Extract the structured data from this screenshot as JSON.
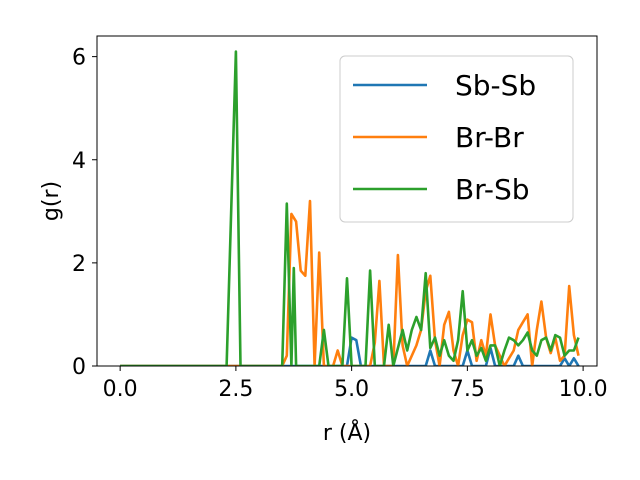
{
  "chart_data": {
    "type": "line",
    "xlabel": "r (Å)",
    "ylabel": "g(r)",
    "xlim": [
      -0.5,
      10.3
    ],
    "ylim": [
      0,
      6.4
    ],
    "xticks": [
      0.0,
      2.5,
      5.0,
      7.5,
      10.0
    ],
    "xtick_labels": [
      "0.0",
      "2.5",
      "5.0",
      "7.5",
      "10.0"
    ],
    "yticks": [
      0,
      2,
      4,
      6
    ],
    "ytick_labels": [
      "0",
      "2",
      "4",
      "6"
    ],
    "legend_position": "top-right",
    "grid": false,
    "series": [
      {
        "name": "Sb-Sb",
        "color": "#1f77b4",
        "points": [
          [
            0.0,
            0
          ],
          [
            4.9,
            0
          ],
          [
            5.0,
            0.55
          ],
          [
            5.1,
            0.5
          ],
          [
            5.2,
            0
          ],
          [
            6.6,
            0
          ],
          [
            6.7,
            0.3
          ],
          [
            6.8,
            0
          ],
          [
            7.4,
            0
          ],
          [
            7.5,
            0.3
          ],
          [
            7.6,
            0
          ],
          [
            7.9,
            0
          ],
          [
            8.0,
            0.35
          ],
          [
            8.1,
            0
          ],
          [
            8.5,
            0
          ],
          [
            8.6,
            0.2
          ],
          [
            8.7,
            0
          ],
          [
            9.5,
            0
          ],
          [
            9.6,
            0.15
          ],
          [
            9.7,
            0
          ],
          [
            9.8,
            0.15
          ],
          [
            9.9,
            0
          ]
        ]
      },
      {
        "name": "Br-Br",
        "color": "#ff7f0e",
        "points": [
          [
            0.0,
            0
          ],
          [
            3.5,
            0
          ],
          [
            3.6,
            0.2
          ],
          [
            3.7,
            2.95
          ],
          [
            3.8,
            2.8
          ],
          [
            3.9,
            1.85
          ],
          [
            4.0,
            1.75
          ],
          [
            4.1,
            3.2
          ],
          [
            4.2,
            0
          ],
          [
            4.3,
            2.2
          ],
          [
            4.4,
            0
          ],
          [
            4.6,
            0
          ],
          [
            4.7,
            0.3
          ],
          [
            4.8,
            0
          ],
          [
            5.4,
            0
          ],
          [
            5.5,
            0.45
          ],
          [
            5.6,
            1.65
          ],
          [
            5.7,
            0
          ],
          [
            5.9,
            0
          ],
          [
            6.0,
            2.15
          ],
          [
            6.1,
            0.4
          ],
          [
            6.2,
            0
          ],
          [
            6.4,
            0.4
          ],
          [
            6.5,
            0.7
          ],
          [
            6.6,
            1.45
          ],
          [
            6.7,
            1.75
          ],
          [
            6.8,
            0.5
          ],
          [
            6.9,
            0
          ],
          [
            7.0,
            0.8
          ],
          [
            7.1,
            1.05
          ],
          [
            7.2,
            0.3
          ],
          [
            7.3,
            0
          ],
          [
            7.4,
            0.6
          ],
          [
            7.5,
            0.9
          ],
          [
            7.6,
            0.85
          ],
          [
            7.7,
            0.1
          ],
          [
            7.8,
            0.5
          ],
          [
            7.9,
            0.2
          ],
          [
            8.0,
            1.0
          ],
          [
            8.1,
            0.4
          ],
          [
            8.2,
            0.2
          ],
          [
            8.3,
            0
          ],
          [
            8.5,
            0.3
          ],
          [
            8.6,
            0.7
          ],
          [
            8.7,
            0.85
          ],
          [
            8.8,
            1.0
          ],
          [
            8.9,
            0
          ],
          [
            9.0,
            0.7
          ],
          [
            9.1,
            1.25
          ],
          [
            9.2,
            0.55
          ],
          [
            9.3,
            0.25
          ],
          [
            9.4,
            0.55
          ],
          [
            9.5,
            0.1
          ],
          [
            9.6,
            0.2
          ],
          [
            9.7,
            1.55
          ],
          [
            9.8,
            0.6
          ],
          [
            9.9,
            0.2
          ]
        ]
      },
      {
        "name": "Br-Sb",
        "color": "#2ca02c",
        "points": [
          [
            0.0,
            0
          ],
          [
            2.3,
            0
          ],
          [
            2.5,
            6.1
          ],
          [
            2.6,
            0
          ],
          [
            3.5,
            0
          ],
          [
            3.6,
            3.15
          ],
          [
            3.7,
            0
          ],
          [
            3.75,
            1.9
          ],
          [
            3.8,
            0
          ],
          [
            4.3,
            0
          ],
          [
            4.4,
            0.7
          ],
          [
            4.5,
            0
          ],
          [
            4.8,
            0
          ],
          [
            4.9,
            1.7
          ],
          [
            5.0,
            0
          ],
          [
            5.3,
            0
          ],
          [
            5.4,
            1.85
          ],
          [
            5.5,
            0
          ],
          [
            5.7,
            0
          ],
          [
            5.8,
            0.8
          ],
          [
            5.9,
            0
          ],
          [
            6.1,
            0.7
          ],
          [
            6.2,
            0.3
          ],
          [
            6.3,
            0.7
          ],
          [
            6.4,
            0.95
          ],
          [
            6.5,
            0.7
          ],
          [
            6.6,
            1.8
          ],
          [
            6.7,
            0.35
          ],
          [
            6.8,
            0.55
          ],
          [
            6.9,
            0.2
          ],
          [
            7.0,
            0.5
          ],
          [
            7.1,
            0.2
          ],
          [
            7.2,
            0.1
          ],
          [
            7.3,
            0.5
          ],
          [
            7.4,
            1.45
          ],
          [
            7.5,
            0.3
          ],
          [
            7.6,
            0.5
          ],
          [
            7.7,
            0.2
          ],
          [
            7.8,
            0.35
          ],
          [
            7.9,
            0.1
          ],
          [
            8.0,
            0.4
          ],
          [
            8.1,
            0.4
          ],
          [
            8.2,
            0
          ],
          [
            8.3,
            0.3
          ],
          [
            8.4,
            0.55
          ],
          [
            8.5,
            0.5
          ],
          [
            8.6,
            0.4
          ],
          [
            8.7,
            0.5
          ],
          [
            8.8,
            0.65
          ],
          [
            8.9,
            0.3
          ],
          [
            9.0,
            0.2
          ],
          [
            9.1,
            0.5
          ],
          [
            9.2,
            0.55
          ],
          [
            9.3,
            0.3
          ],
          [
            9.4,
            0.6
          ],
          [
            9.5,
            0.55
          ],
          [
            9.6,
            0.2
          ],
          [
            9.7,
            0.3
          ],
          [
            9.8,
            0.3
          ],
          [
            9.9,
            0.55
          ]
        ]
      }
    ]
  }
}
